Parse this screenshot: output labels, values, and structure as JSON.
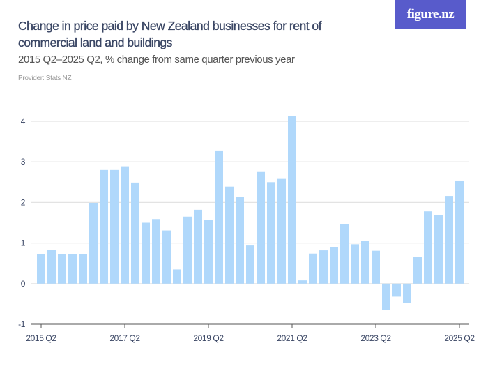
{
  "header": {
    "title": "Change in price paid by New Zealand businesses for rent of commercial land and buildings",
    "subtitle": "2015 Q2–2025 Q2, % change from same quarter previous year",
    "provider": "Provider: Stats NZ",
    "logo": "figure.nz"
  },
  "colors": {
    "bar": "#b0d8fb",
    "logo_bg": "#585bcb",
    "title": "#3a4664",
    "grid": "#e3e3e3"
  },
  "chart_data": {
    "type": "bar",
    "title": "Change in price paid by New Zealand businesses for rent of commercial land and buildings",
    "subtitle": "2015 Q2–2025 Q2, % change from same quarter previous year",
    "xlabel": "",
    "ylabel": "",
    "ylim": [
      -1,
      4
    ],
    "yticks": [
      "-1",
      "0",
      "1",
      "2",
      "3",
      "4"
    ],
    "grid": true,
    "categories": [
      "2015 Q2",
      "2015 Q3",
      "2015 Q4",
      "2016 Q1",
      "2016 Q2",
      "2016 Q3",
      "2016 Q4",
      "2017 Q1",
      "2017 Q2",
      "2017 Q3",
      "2017 Q4",
      "2018 Q1",
      "2018 Q2",
      "2018 Q3",
      "2018 Q4",
      "2019 Q1",
      "2019 Q2",
      "2019 Q3",
      "2019 Q4",
      "2020 Q1",
      "2020 Q2",
      "2020 Q3",
      "2020 Q4",
      "2021 Q1",
      "2021 Q2",
      "2021 Q3",
      "2021 Q4",
      "2022 Q1",
      "2022 Q2",
      "2022 Q3",
      "2022 Q4",
      "2023 Q1",
      "2023 Q2",
      "2023 Q3",
      "2023 Q4",
      "2024 Q1",
      "2024 Q2",
      "2024 Q3",
      "2024 Q4",
      "2025 Q1",
      "2025 Q2"
    ],
    "xtick_labels": [
      "2015 Q2",
      "2017 Q2",
      "2019 Q2",
      "2021 Q2",
      "2023 Q2",
      "2025 Q2"
    ],
    "values": [
      0.73,
      0.83,
      0.73,
      0.73,
      0.73,
      1.99,
      2.8,
      2.8,
      2.89,
      2.49,
      1.5,
      1.59,
      1.31,
      0.35,
      1.65,
      1.82,
      1.56,
      3.28,
      2.39,
      2.13,
      0.94,
      2.75,
      2.5,
      2.58,
      4.13,
      0.08,
      0.74,
      0.82,
      0.89,
      1.47,
      0.97,
      1.05,
      0.81,
      -0.64,
      -0.32,
      -0.48,
      0.65,
      1.78,
      1.69,
      2.16,
      2.54
    ]
  }
}
